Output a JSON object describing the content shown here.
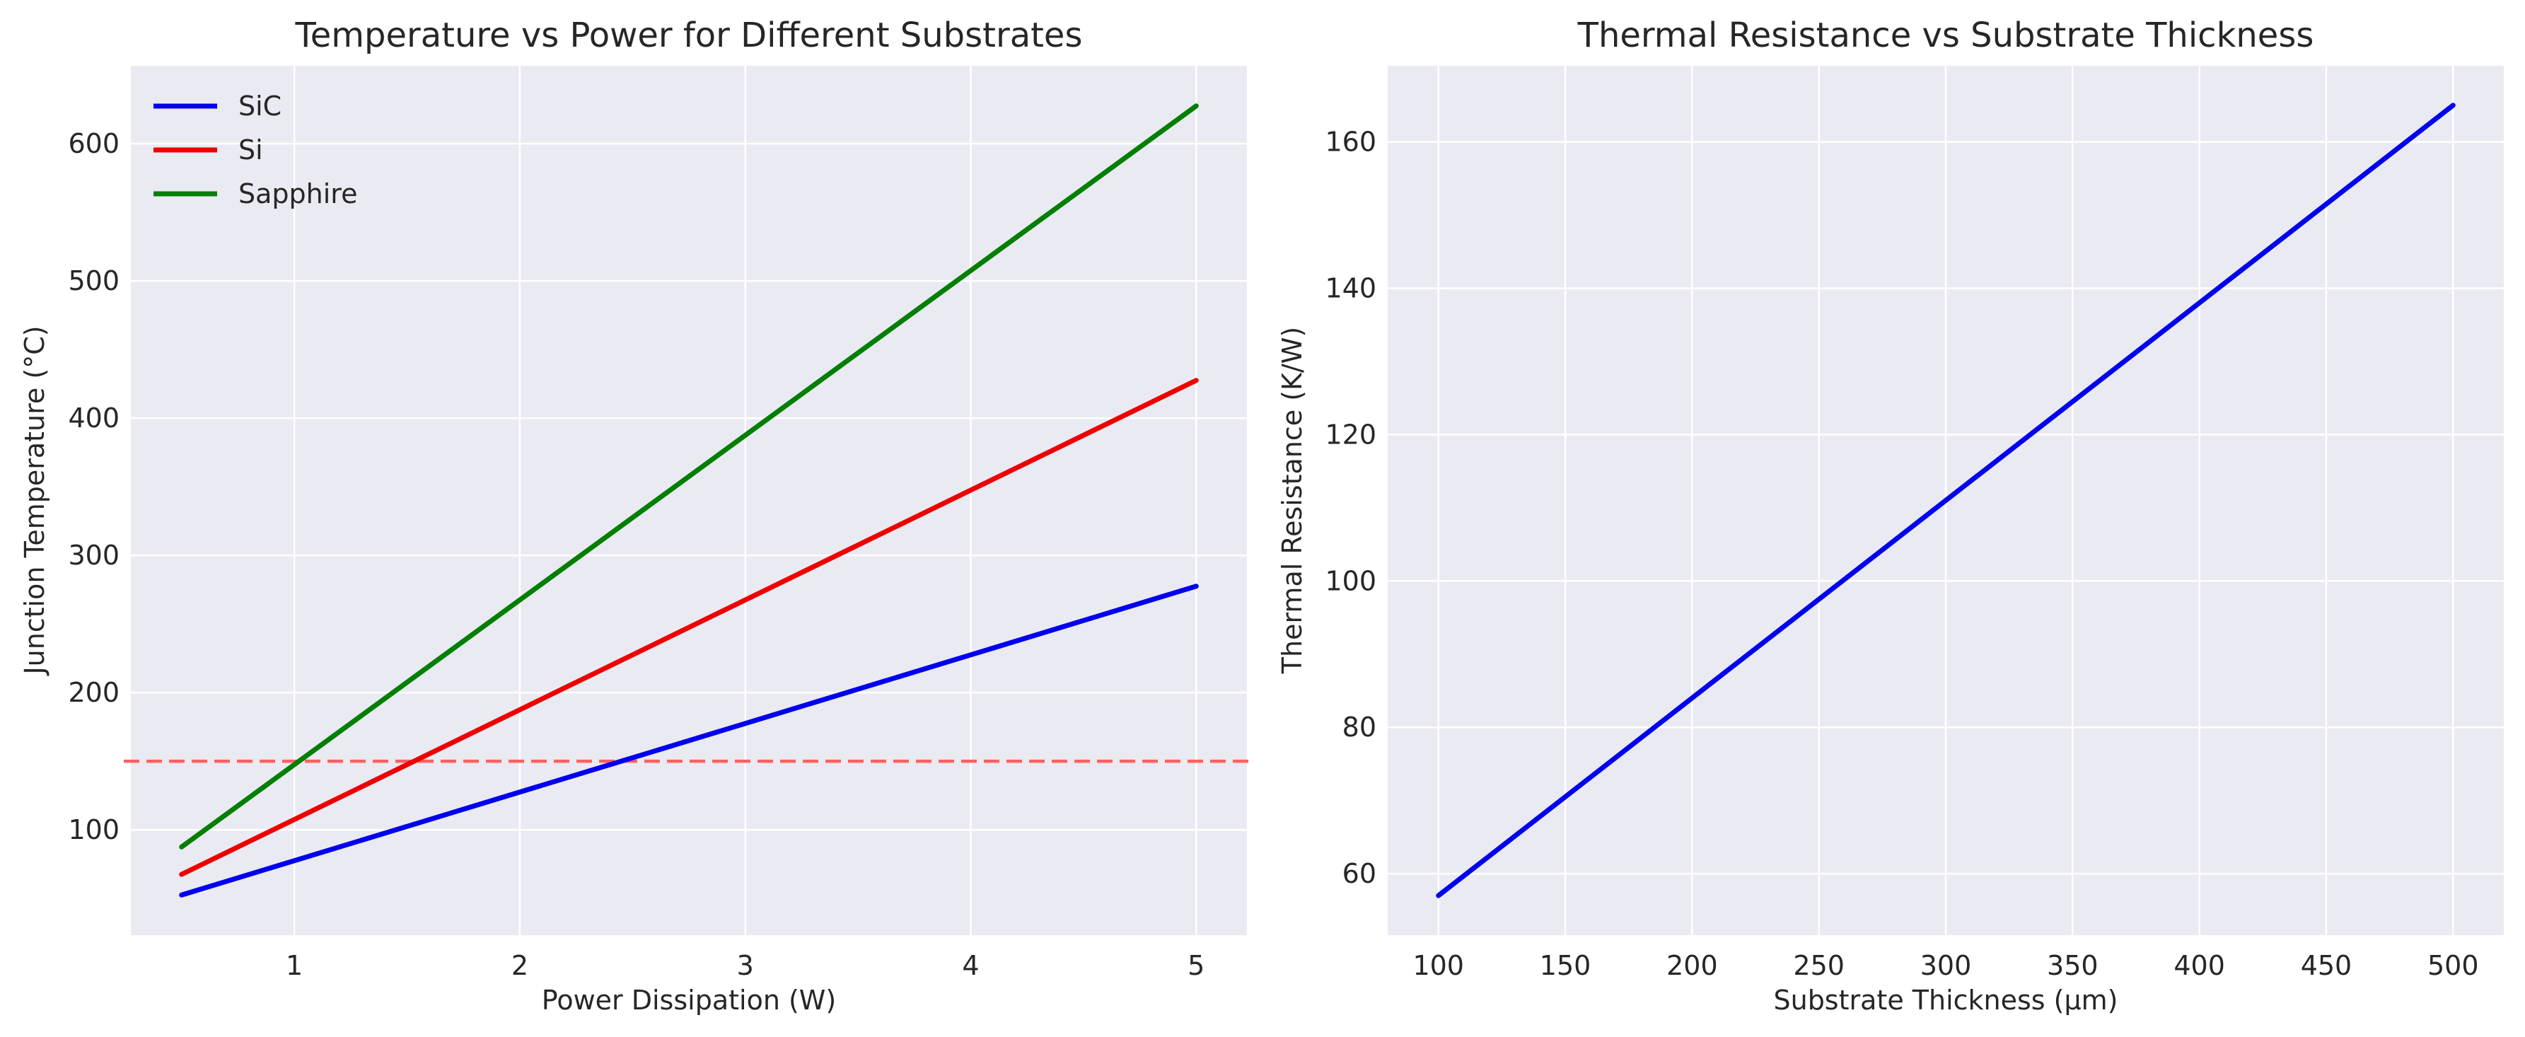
{
  "chart_data": [
    {
      "type": "line",
      "title": "Temperature vs Power for Different Substrates",
      "xlabel": "Power Dissipation (W)",
      "ylabel": "Junction Temperature (°C)",
      "xlim": [
        0.275,
        5.225
      ],
      "ylim": [
        23.25,
        656.75
      ],
      "xticks": [
        1,
        2,
        3,
        4,
        5
      ],
      "yticks": [
        100,
        200,
        300,
        400,
        500,
        600
      ],
      "grid": true,
      "legend_position": "top-left",
      "series": [
        {
          "name": "SiC",
          "color": "#0000ee",
          "x": [
            0.5,
            5
          ],
          "y": [
            52.5,
            277.5
          ]
        },
        {
          "name": "Si",
          "color": "#ee0000",
          "x": [
            0.5,
            5
          ],
          "y": [
            67.5,
            427.5
          ]
        },
        {
          "name": "Sapphire",
          "color": "#007f00",
          "x": [
            0.5,
            5
          ],
          "y": [
            87.5,
            627.5
          ]
        }
      ],
      "reference_lines": [
        {
          "y": 150,
          "color": "#ff6060",
          "style": "dashed"
        }
      ]
    },
    {
      "type": "line",
      "title": "Thermal Resistance vs Substrate Thickness",
      "xlabel": "Substrate Thickness (μm)",
      "ylabel": "Thermal Resistance (K/W)",
      "xlim": [
        80,
        520
      ],
      "ylim": [
        51.6,
        170.4
      ],
      "xticks": [
        100,
        150,
        200,
        250,
        300,
        350,
        400,
        450,
        500
      ],
      "yticks": [
        60,
        80,
        100,
        120,
        140,
        160
      ],
      "grid": true,
      "series": [
        {
          "color": "#0000ee",
          "x": [
            100,
            500
          ],
          "y": [
            57,
            165
          ]
        }
      ]
    }
  ]
}
